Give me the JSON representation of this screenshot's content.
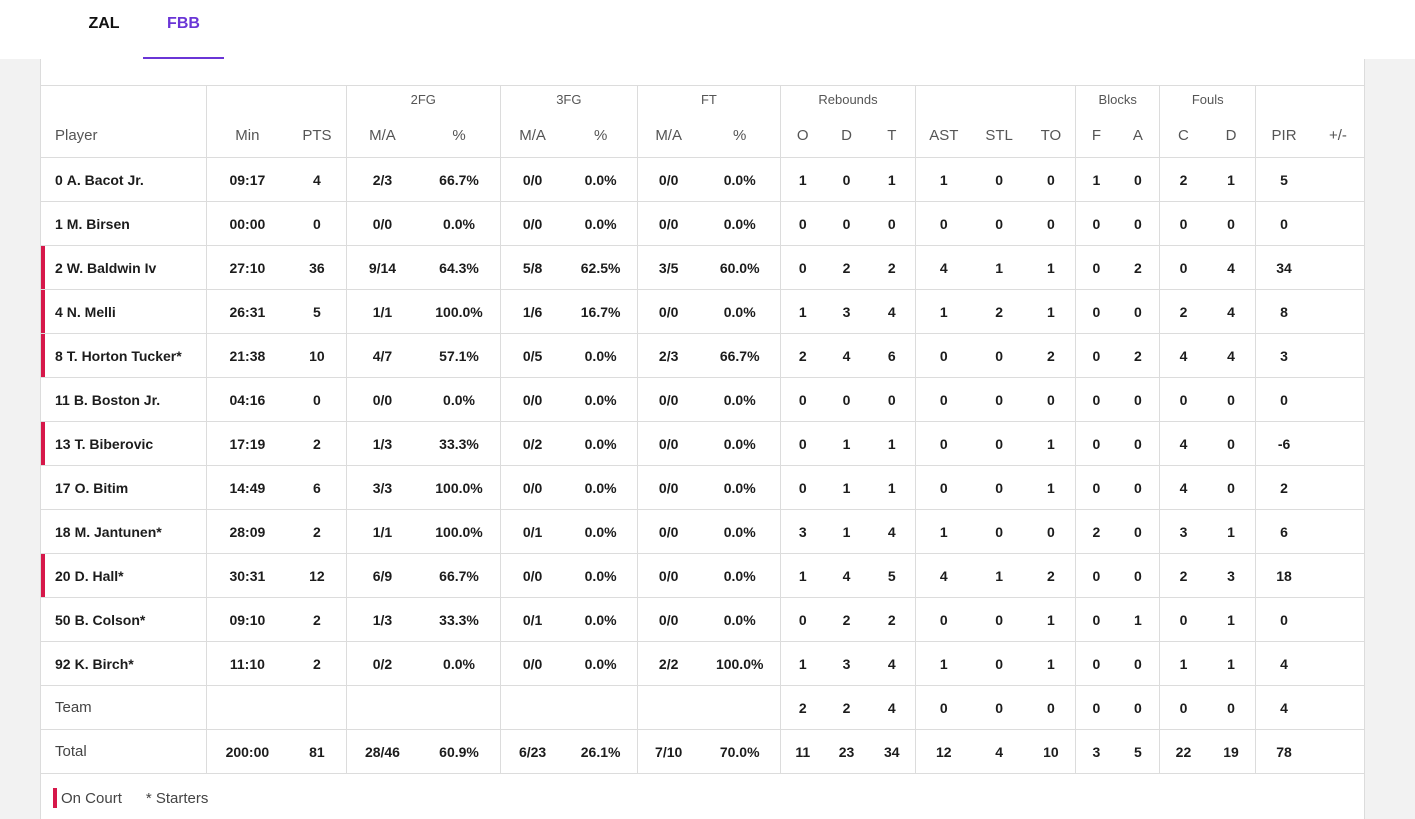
{
  "tabs": [
    {
      "label": "ZAL",
      "active": false
    },
    {
      "label": "FBB",
      "active": true
    }
  ],
  "colors": {
    "accent": "#6a35d6",
    "on_court": "#d6184a"
  },
  "groups": {
    "fg2": "2FG",
    "fg3": "3FG",
    "ft": "FT",
    "reb": "Rebounds",
    "blk": "Blocks",
    "fouls": "Fouls"
  },
  "columns": {
    "player": "Player",
    "min": "Min",
    "pts": "PTS",
    "fg2_ma": "M/A",
    "fg2_pct": "%",
    "fg3_ma": "M/A",
    "fg3_pct": "%",
    "ft_ma": "M/A",
    "ft_pct": "%",
    "reb_o": "O",
    "reb_d": "D",
    "reb_t": "T",
    "ast": "AST",
    "stl": "STL",
    "to": "TO",
    "blk_f": "F",
    "blk_a": "A",
    "fouls_c": "C",
    "fouls_d": "D",
    "pir": "PIR",
    "pm": "+/-"
  },
  "players": [
    {
      "num": "0",
      "name": "A. Bacot Jr.",
      "on_court": false,
      "min": "09:17",
      "pts": "4",
      "fg2_ma": "2/3",
      "fg2_pct": "66.7%",
      "fg3_ma": "0/0",
      "fg3_pct": "0.0%",
      "ft_ma": "0/0",
      "ft_pct": "0.0%",
      "reb_o": "1",
      "reb_d": "0",
      "reb_t": "1",
      "ast": "1",
      "stl": "0",
      "to": "0",
      "blk_f": "1",
      "blk_a": "0",
      "fouls_c": "2",
      "fouls_d": "1",
      "pir": "5",
      "pm": ""
    },
    {
      "num": "1",
      "name": "M. Birsen",
      "on_court": false,
      "min": "00:00",
      "pts": "0",
      "fg2_ma": "0/0",
      "fg2_pct": "0.0%",
      "fg3_ma": "0/0",
      "fg3_pct": "0.0%",
      "ft_ma": "0/0",
      "ft_pct": "0.0%",
      "reb_o": "0",
      "reb_d": "0",
      "reb_t": "0",
      "ast": "0",
      "stl": "0",
      "to": "0",
      "blk_f": "0",
      "blk_a": "0",
      "fouls_c": "0",
      "fouls_d": "0",
      "pir": "0",
      "pm": ""
    },
    {
      "num": "2",
      "name": "W. Baldwin Iv",
      "on_court": true,
      "min": "27:10",
      "pts": "36",
      "fg2_ma": "9/14",
      "fg2_pct": "64.3%",
      "fg3_ma": "5/8",
      "fg3_pct": "62.5%",
      "ft_ma": "3/5",
      "ft_pct": "60.0%",
      "reb_o": "0",
      "reb_d": "2",
      "reb_t": "2",
      "ast": "4",
      "stl": "1",
      "to": "1",
      "blk_f": "0",
      "blk_a": "2",
      "fouls_c": "0",
      "fouls_d": "4",
      "pir": "34",
      "pm": ""
    },
    {
      "num": "4",
      "name": "N. Melli",
      "on_court": true,
      "min": "26:31",
      "pts": "5",
      "fg2_ma": "1/1",
      "fg2_pct": "100.0%",
      "fg3_ma": "1/6",
      "fg3_pct": "16.7%",
      "ft_ma": "0/0",
      "ft_pct": "0.0%",
      "reb_o": "1",
      "reb_d": "3",
      "reb_t": "4",
      "ast": "1",
      "stl": "2",
      "to": "1",
      "blk_f": "0",
      "blk_a": "0",
      "fouls_c": "2",
      "fouls_d": "4",
      "pir": "8",
      "pm": ""
    },
    {
      "num": "8",
      "name": "T. Horton Tucker*",
      "on_court": true,
      "min": "21:38",
      "pts": "10",
      "fg2_ma": "4/7",
      "fg2_pct": "57.1%",
      "fg3_ma": "0/5",
      "fg3_pct": "0.0%",
      "ft_ma": "2/3",
      "ft_pct": "66.7%",
      "reb_o": "2",
      "reb_d": "4",
      "reb_t": "6",
      "ast": "0",
      "stl": "0",
      "to": "2",
      "blk_f": "0",
      "blk_a": "2",
      "fouls_c": "4",
      "fouls_d": "4",
      "pir": "3",
      "pm": ""
    },
    {
      "num": "11",
      "name": "B. Boston Jr.",
      "on_court": false,
      "min": "04:16",
      "pts": "0",
      "fg2_ma": "0/0",
      "fg2_pct": "0.0%",
      "fg3_ma": "0/0",
      "fg3_pct": "0.0%",
      "ft_ma": "0/0",
      "ft_pct": "0.0%",
      "reb_o": "0",
      "reb_d": "0",
      "reb_t": "0",
      "ast": "0",
      "stl": "0",
      "to": "0",
      "blk_f": "0",
      "blk_a": "0",
      "fouls_c": "0",
      "fouls_d": "0",
      "pir": "0",
      "pm": ""
    },
    {
      "num": "13",
      "name": "T. Biberovic",
      "on_court": true,
      "min": "17:19",
      "pts": "2",
      "fg2_ma": "1/3",
      "fg2_pct": "33.3%",
      "fg3_ma": "0/2",
      "fg3_pct": "0.0%",
      "ft_ma": "0/0",
      "ft_pct": "0.0%",
      "reb_o": "0",
      "reb_d": "1",
      "reb_t": "1",
      "ast": "0",
      "stl": "0",
      "to": "1",
      "blk_f": "0",
      "blk_a": "0",
      "fouls_c": "4",
      "fouls_d": "0",
      "pir": "-6",
      "pm": ""
    },
    {
      "num": "17",
      "name": "O. Bitim",
      "on_court": false,
      "min": "14:49",
      "pts": "6",
      "fg2_ma": "3/3",
      "fg2_pct": "100.0%",
      "fg3_ma": "0/0",
      "fg3_pct": "0.0%",
      "ft_ma": "0/0",
      "ft_pct": "0.0%",
      "reb_o": "0",
      "reb_d": "1",
      "reb_t": "1",
      "ast": "0",
      "stl": "0",
      "to": "1",
      "blk_f": "0",
      "blk_a": "0",
      "fouls_c": "4",
      "fouls_d": "0",
      "pir": "2",
      "pm": ""
    },
    {
      "num": "18",
      "name": "M. Jantunen*",
      "on_court": false,
      "min": "28:09",
      "pts": "2",
      "fg2_ma": "1/1",
      "fg2_pct": "100.0%",
      "fg3_ma": "0/1",
      "fg3_pct": "0.0%",
      "ft_ma": "0/0",
      "ft_pct": "0.0%",
      "reb_o": "3",
      "reb_d": "1",
      "reb_t": "4",
      "ast": "1",
      "stl": "0",
      "to": "0",
      "blk_f": "2",
      "blk_a": "0",
      "fouls_c": "3",
      "fouls_d": "1",
      "pir": "6",
      "pm": ""
    },
    {
      "num": "20",
      "name": "D. Hall*",
      "on_court": true,
      "min": "30:31",
      "pts": "12",
      "fg2_ma": "6/9",
      "fg2_pct": "66.7%",
      "fg3_ma": "0/0",
      "fg3_pct": "0.0%",
      "ft_ma": "0/0",
      "ft_pct": "0.0%",
      "reb_o": "1",
      "reb_d": "4",
      "reb_t": "5",
      "ast": "4",
      "stl": "1",
      "to": "2",
      "blk_f": "0",
      "blk_a": "0",
      "fouls_c": "2",
      "fouls_d": "3",
      "pir": "18",
      "pm": ""
    },
    {
      "num": "50",
      "name": "B. Colson*",
      "on_court": false,
      "min": "09:10",
      "pts": "2",
      "fg2_ma": "1/3",
      "fg2_pct": "33.3%",
      "fg3_ma": "0/1",
      "fg3_pct": "0.0%",
      "ft_ma": "0/0",
      "ft_pct": "0.0%",
      "reb_o": "0",
      "reb_d": "2",
      "reb_t": "2",
      "ast": "0",
      "stl": "0",
      "to": "1",
      "blk_f": "0",
      "blk_a": "1",
      "fouls_c": "0",
      "fouls_d": "1",
      "pir": "0",
      "pm": ""
    },
    {
      "num": "92",
      "name": "K. Birch*",
      "on_court": false,
      "min": "11:10",
      "pts": "2",
      "fg2_ma": "0/2",
      "fg2_pct": "0.0%",
      "fg3_ma": "0/0",
      "fg3_pct": "0.0%",
      "ft_ma": "2/2",
      "ft_pct": "100.0%",
      "reb_o": "1",
      "reb_d": "3",
      "reb_t": "4",
      "ast": "1",
      "stl": "0",
      "to": "1",
      "blk_f": "0",
      "blk_a": "0",
      "fouls_c": "1",
      "fouls_d": "1",
      "pir": "4",
      "pm": ""
    }
  ],
  "team": {
    "label": "Team",
    "min": "",
    "pts": "",
    "fg2_ma": "",
    "fg2_pct": "",
    "fg3_ma": "",
    "fg3_pct": "",
    "ft_ma": "",
    "ft_pct": "",
    "reb_o": "2",
    "reb_d": "2",
    "reb_t": "4",
    "ast": "0",
    "stl": "0",
    "to": "0",
    "blk_f": "0",
    "blk_a": "0",
    "fouls_c": "0",
    "fouls_d": "0",
    "pir": "4",
    "pm": ""
  },
  "total": {
    "label": "Total",
    "min": "200:00",
    "pts": "81",
    "fg2_ma": "28/46",
    "fg2_pct": "60.9%",
    "fg3_ma": "6/23",
    "fg3_pct": "26.1%",
    "ft_ma": "7/10",
    "ft_pct": "70.0%",
    "reb_o": "11",
    "reb_d": "23",
    "reb_t": "34",
    "ast": "12",
    "stl": "4",
    "to": "10",
    "blk_f": "3",
    "blk_a": "5",
    "fouls_c": "22",
    "fouls_d": "19",
    "pir": "78",
    "pm": ""
  },
  "legend": {
    "on_court": "On Court",
    "starters": "* Starters"
  }
}
